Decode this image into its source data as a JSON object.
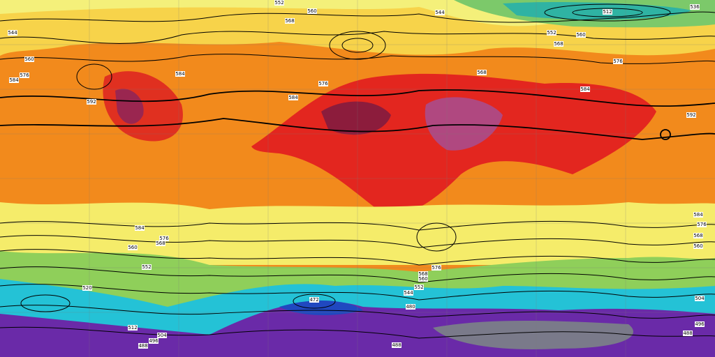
{
  "map": {
    "contour_labels": [
      "552",
      "560",
      "544",
      "512",
      "536",
      "544",
      "568",
      "552",
      "560",
      "568",
      "576",
      "584",
      "576",
      "584",
      "592",
      "592",
      "584",
      "568",
      "560",
      "584",
      "576",
      "584",
      "576",
      "568",
      "560",
      "552",
      "576",
      "568",
      "560",
      "552",
      "544",
      "520",
      "512",
      "504",
      "496",
      "488",
      "480",
      "472",
      "488",
      "584",
      "576",
      "568",
      "560",
      "504",
      "496",
      "488"
    ]
  }
}
